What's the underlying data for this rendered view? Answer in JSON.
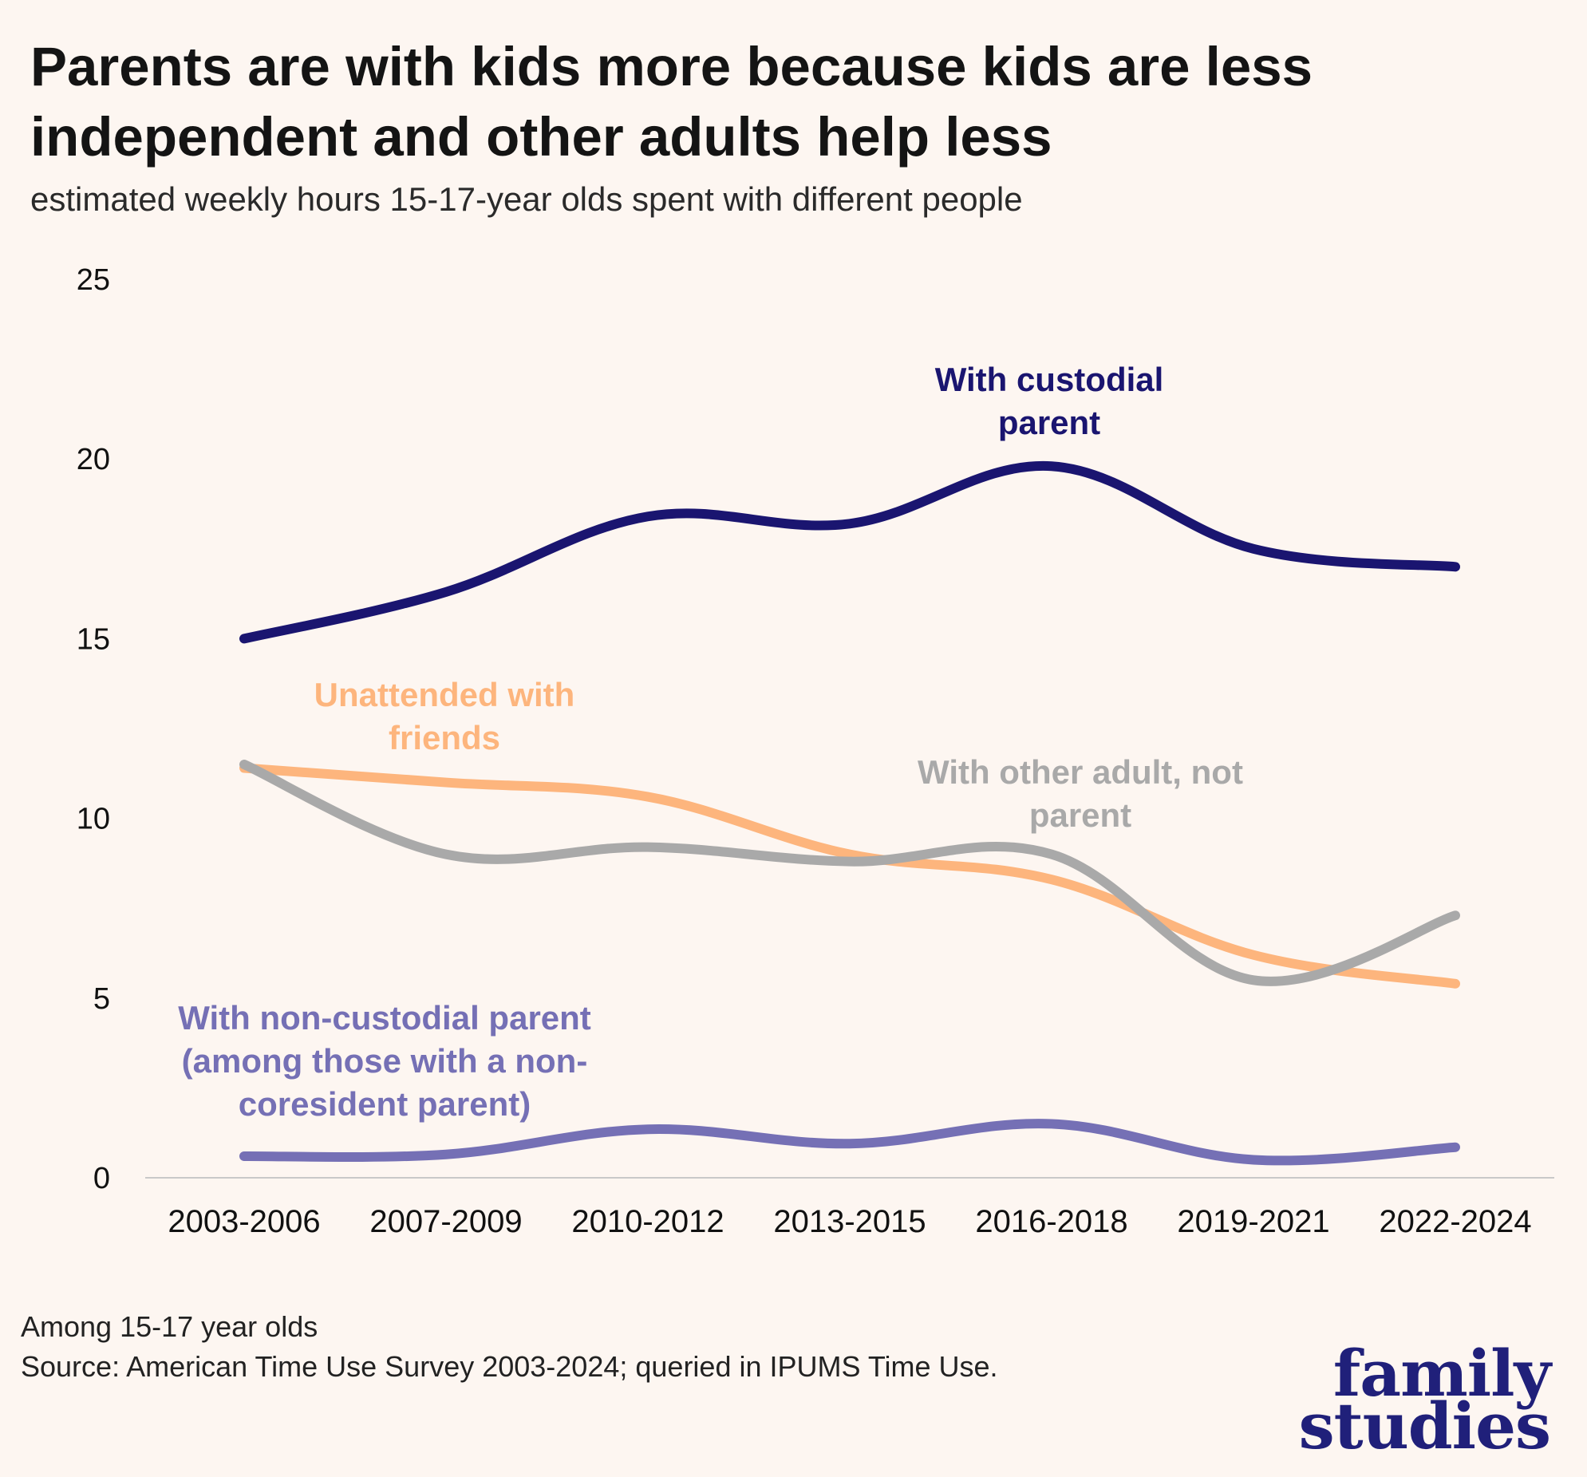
{
  "title": "Parents are with kids more because kids are less independent and other adults help less",
  "subtitle": "estimated weekly hours 15-17-year olds spent with different people",
  "footnote": {
    "line1": "Among 15-17 year olds",
    "line2": "Source: American Time Use Survey 2003-2024; queried in IPUMS Time Use."
  },
  "logo": {
    "line1": "family",
    "line2": "studies"
  },
  "chart_data": {
    "type": "line",
    "categories": [
      "2003-2006",
      "2007-2009",
      "2010-2012",
      "2013-2015",
      "2016-2018",
      "2019-2021",
      "2022-2024"
    ],
    "ylim": [
      0,
      25
    ],
    "yticks": [
      0,
      5,
      10,
      15,
      20,
      25
    ],
    "grid": false,
    "series": [
      {
        "name": "With custodial parent",
        "label_lines": [
          "With custodial",
          "parent"
        ],
        "color": "#1a1570",
        "values": [
          15.0,
          16.3,
          18.4,
          18.2,
          19.8,
          17.5,
          17.0
        ]
      },
      {
        "name": "Unattended with friends",
        "label_lines": [
          "Unattended with",
          "friends"
        ],
        "color": "#fdb57d",
        "values": [
          11.4,
          11.0,
          10.6,
          9.0,
          8.3,
          6.2,
          5.4
        ]
      },
      {
        "name": "With other adult, not parent",
        "label_lines": [
          "With other adult, not",
          "parent"
        ],
        "color": "#a9a9a9",
        "values": [
          11.5,
          9.0,
          9.2,
          8.8,
          9.0,
          5.5,
          7.3
        ]
      },
      {
        "name": "With non-custodial parent (among those with a non-coresident parent)",
        "label_lines": [
          "With non-custodial parent",
          "(among those with a non-",
          "coresident parent)"
        ],
        "color": "#7570b5",
        "values": [
          0.6,
          0.65,
          1.35,
          0.95,
          1.5,
          0.5,
          0.85
        ]
      }
    ]
  }
}
